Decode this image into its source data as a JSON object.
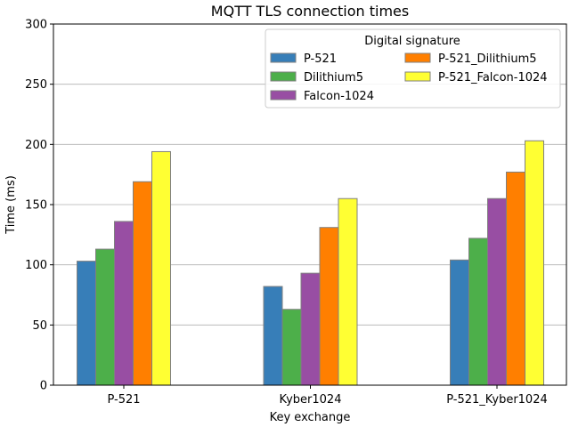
{
  "chart_data": {
    "type": "bar",
    "title": "MQTT TLS connection times",
    "xlabel": "Key exchange",
    "ylabel": "Time (ms)",
    "ylim": [
      0,
      300
    ],
    "yticks": [
      0,
      50,
      100,
      150,
      200,
      250,
      300
    ],
    "grid": "horizontal",
    "legend_title": "Digital signature",
    "legend_position": "top-right",
    "categories": [
      "P-521",
      "Kyber1024",
      "P-521_Kyber1024"
    ],
    "series": [
      {
        "name": "P-521",
        "color": "#377eb8",
        "values": [
          103,
          82,
          104
        ]
      },
      {
        "name": "Dilithium5",
        "color": "#4daf4a",
        "values": [
          113,
          63,
          122
        ]
      },
      {
        "name": "Falcon-1024",
        "color": "#984ea3",
        "values": [
          136,
          93,
          155
        ]
      },
      {
        "name": "P-521_Dilithium5",
        "color": "#ff7f00",
        "values": [
          169,
          131,
          177
        ]
      },
      {
        "name": "P-521_Falcon-1024",
        "color": "#ffff33",
        "values": [
          194,
          155,
          203
        ]
      }
    ]
  }
}
